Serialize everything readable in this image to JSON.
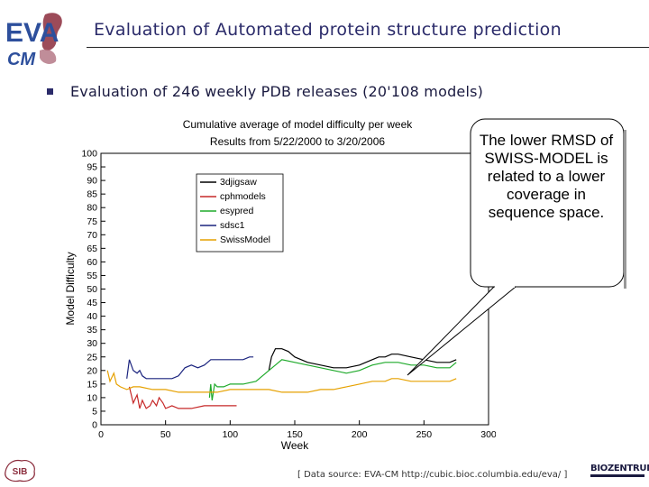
{
  "slide": {
    "title": "Evaluation of Automated protein structure prediction",
    "bullet": "Evaluation of 246 weekly PDB releases (20'108 models)",
    "logo_text_top": "EVA",
    "logo_text_bottom": "CM",
    "sib_logo_text": "SIB",
    "biozentrum_logo": "BIOZENTRUM",
    "footer": "[ Data source: EVA-CM http://cubic.bioc.columbia.edu/eva/ ]",
    "callout": "The lower RMSD of SWISS-MODEL is related to a lower coverage in sequence space.",
    "colors": {
      "title": "#2b2b6a",
      "logo_blue": "#2d4f9c",
      "logo_red": "#8b2c3c"
    }
  },
  "chart_data": {
    "type": "line",
    "title": "Cumulative average of model difficulty per week",
    "subtitle": "Results from 5/22/2000 to 3/20/2006",
    "xlabel": "Week",
    "ylabel": "Model Difficulty",
    "xlim": [
      0,
      300
    ],
    "ylim": [
      0,
      100
    ],
    "xticks": [
      0,
      50,
      100,
      150,
      200,
      250,
      300
    ],
    "yticks": [
      0,
      5,
      10,
      15,
      20,
      25,
      30,
      35,
      40,
      45,
      50,
      55,
      60,
      65,
      70,
      75,
      80,
      85,
      90,
      95,
      100
    ],
    "grid": false,
    "legend_position": "top-left",
    "series": [
      {
        "name": "3djigsaw",
        "color": "#000000",
        "x": [
          130,
          132,
          135,
          140,
          145,
          150,
          160,
          170,
          180,
          190,
          200,
          205,
          210,
          215,
          220,
          225,
          230,
          240,
          250,
          260,
          270,
          275
        ],
        "y": [
          20,
          25,
          28,
          28,
          27,
          25,
          23,
          22,
          21,
          21,
          22,
          23,
          24,
          25,
          25,
          26,
          26,
          25,
          24,
          23,
          23,
          24
        ]
      },
      {
        "name": "cphmodels",
        "color": "#c62828",
        "x": [
          22,
          25,
          28,
          30,
          32,
          35,
          38,
          40,
          43,
          45,
          48,
          50,
          55,
          60,
          70,
          80,
          90,
          100,
          105
        ],
        "y": [
          14,
          8,
          11,
          6,
          9,
          6,
          7,
          9,
          7,
          10,
          8,
          6,
          7,
          6,
          6,
          7,
          7,
          7,
          7
        ]
      },
      {
        "name": "esypred",
        "color": "#1faa2b",
        "x": [
          84,
          85,
          86,
          88,
          90,
          95,
          100,
          110,
          120,
          130,
          135,
          140,
          150,
          160,
          170,
          180,
          190,
          200,
          205,
          210,
          220,
          230,
          240,
          250,
          260,
          270,
          275
        ],
        "y": [
          10,
          15,
          9,
          15,
          14,
          14,
          15,
          15,
          16,
          20,
          22,
          24,
          23,
          22,
          21,
          20,
          19,
          20,
          21,
          22,
          23,
          23,
          22,
          22,
          21,
          21,
          23
        ]
      },
      {
        "name": "sdsc1",
        "color": "#1a237e",
        "x": [
          20,
          22,
          25,
          28,
          30,
          32,
          35,
          40,
          45,
          50,
          55,
          60,
          65,
          70,
          75,
          80,
          85,
          90,
          95,
          100,
          105,
          110,
          115,
          118
        ],
        "y": [
          17,
          24,
          20,
          19,
          20,
          18,
          17,
          17,
          17,
          17,
          17,
          18,
          21,
          22,
          21,
          22,
          24,
          24,
          24,
          24,
          24,
          24,
          25,
          25
        ]
      },
      {
        "name": "SwissModel",
        "color": "#e6a100",
        "x": [
          5,
          7,
          10,
          12,
          15,
          20,
          25,
          30,
          40,
          50,
          60,
          70,
          80,
          90,
          100,
          110,
          120,
          130,
          140,
          150,
          160,
          170,
          180,
          190,
          200,
          210,
          220,
          225,
          230,
          240,
          250,
          260,
          270,
          275
        ],
        "y": [
          20,
          16,
          19,
          15,
          14,
          13,
          14,
          14,
          13,
          13,
          12,
          12,
          12,
          12,
          13,
          13,
          13,
          13,
          12,
          12,
          12,
          13,
          13,
          14,
          15,
          16,
          16,
          17,
          17,
          16,
          16,
          16,
          16,
          17
        ]
      }
    ]
  }
}
